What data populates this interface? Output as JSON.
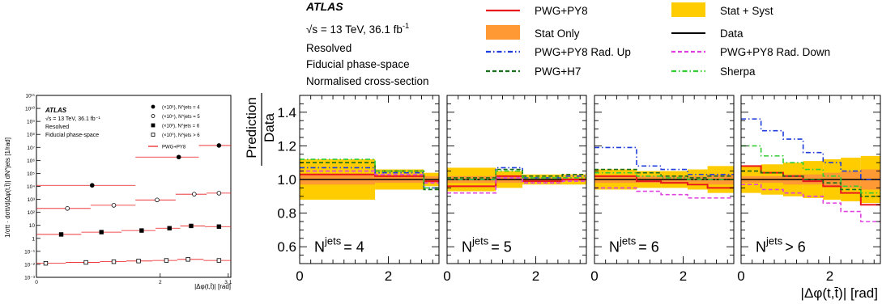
{
  "text": {
    "experiment": "ATLAS",
    "energy": "√s = 13 TeV, 36.1 fb",
    "energy_sup": "-1",
    "selection": "Resolved",
    "phase_space": "Fiducial phase-space",
    "normalisation": "Normalised cross-section"
  },
  "legend": [
    {
      "label": "PWG+PY8",
      "style": "solid",
      "color": "#e8191c"
    },
    {
      "label": "Stat + Syst",
      "style": "box",
      "color": "#ffcc00"
    },
    {
      "label": "Stat Only",
      "style": "box",
      "color": "#ff9933"
    },
    {
      "label": "Data",
      "style": "solid",
      "color": "#000000"
    },
    {
      "label": "PWG+PY8 Rad. Up",
      "style": "dashdot",
      "color": "#1f3ddc"
    },
    {
      "label": "PWG+PY8 Rad. Down",
      "style": "dash",
      "color": "#e040e0"
    },
    {
      "label": "PWG+H7",
      "style": "dash",
      "color": "#1a6e1a"
    },
    {
      "label": "Sherpa",
      "style": "dashdot",
      "color": "#33cc33"
    }
  ],
  "small_plot": {
    "ylabel": "1/σtt · dσtt/d|Δφ(t,t̄)| dN^jets [1/rad]",
    "xlabel": "|Δφ(t,t̄)| [rad]",
    "x_ticks": [
      "0",
      "2",
      "3.1"
    ],
    "y_ticks": [
      "10⁻³",
      "10⁻²",
      "10⁻¹",
      "1",
      "10",
      "10²",
      "10³",
      "10⁴",
      "10⁵",
      "10⁶",
      "10⁷",
      "10⁸",
      "10⁹",
      "10¹⁰",
      "10¹¹"
    ],
    "atlas": "ATLAS",
    "energy": "√s = 13 TeV, 36.1 fb⁻¹",
    "selection": "Resolved",
    "phase_space": "Fiducial phase-space",
    "legend": [
      {
        "label": "(×10⁶), N^jets = 4",
        "marker": "filled-circle"
      },
      {
        "label": "(×10⁴), N^jets = 5",
        "marker": "open-circle"
      },
      {
        "label": "(×10²), N^jets = 6",
        "marker": "filled-square"
      },
      {
        "label": "(×10⁰), N^jets > 6",
        "marker": "open-square"
      },
      {
        "label": "PWG+PY8",
        "marker": "line"
      }
    ]
  },
  "ratio_panels": {
    "ylabel_top": "Prediction",
    "ylabel_bottom": "Data",
    "xlabel": "|Δφ(t,t̄)| [rad]",
    "y_ticks": [
      "0.6",
      "0.8",
      "1.0",
      "1.2",
      "1.4"
    ],
    "x_ticks": [
      "0",
      "2"
    ],
    "panel_labels": [
      {
        "prefix": "N",
        "sup": "jets",
        "rest": "= 4"
      },
      {
        "prefix": "N",
        "sup": "jets",
        "rest": "= 5"
      },
      {
        "prefix": "N",
        "sup": "jets",
        "rest": "= 6"
      },
      {
        "prefix": "N",
        "sup": "jets",
        "rest": "> 6"
      }
    ]
  },
  "chart_data": [
    {
      "type": "line",
      "title": "",
      "xlabel": "|Δφ(t,t̄)| [rad]",
      "ylabel": "1/σtt · dσtt/d|Δφ(t,t̄)| dN^jets [1/rad]",
      "yscale": "log",
      "xlim": [
        0,
        3.1416
      ],
      "ylim": [
        0.001,
        100000000000
      ],
      "series": [
        {
          "name": "(×10⁶), N^jets = 4",
          "x": [
            0.9,
            2.3,
            2.95
          ],
          "y": [
            12000,
            1800000,
            14000000
          ]
        },
        {
          "name": "(×10⁴), N^jets = 5",
          "x": [
            0.5,
            1.25,
            1.95,
            2.55,
            2.95
          ],
          "y": [
            200,
            350,
            900,
            2500,
            3000
          ]
        },
        {
          "name": "(×10²), N^jets = 6",
          "x": [
            0.4,
            1.05,
            1.7,
            2.15,
            2.5,
            2.95
          ],
          "y": [
            2,
            3,
            4,
            6,
            9,
            8
          ]
        },
        {
          "name": "(×10⁰), N^jets > 6",
          "x": [
            0.15,
            0.8,
            1.25,
            1.65,
            2.1,
            2.45,
            2.95
          ],
          "y": [
            0.012,
            0.014,
            0.016,
            0.018,
            0.02,
            0.024,
            0.02
          ]
        }
      ]
    },
    {
      "type": "line",
      "title": "",
      "xlabel": "|Δφ(t,t̄)| [rad]",
      "ylabel": "Prediction / Data",
      "xlim": [
        0,
        3.1416
      ],
      "ylim": [
        0.5,
        1.5
      ],
      "panels": [
        {
          "label": "N^jets = 4",
          "bins": [
            0,
            1.7,
            2.8,
            3.1416
          ],
          "stat_syst": [
            0.12,
            0.06,
            0.04
          ],
          "stat_only": [
            0.03,
            0.02,
            0.02
          ],
          "series": [
            {
              "name": "PWG+PY8",
              "values": [
                1.03,
                1.02,
                0.99
              ]
            },
            {
              "name": "PWG+PY8 Rad. Up",
              "values": [
                1.07,
                1.04,
                0.95
              ]
            },
            {
              "name": "PWG+PY8 Rad. Down",
              "values": [
                1.05,
                1.03,
                0.98
              ]
            },
            {
              "name": "PWG+H7",
              "values": [
                1.1,
                1.05,
                0.94
              ]
            },
            {
              "name": "Sherpa",
              "values": [
                1.12,
                1.05,
                0.95
              ]
            }
          ]
        },
        {
          "label": "N^jets = 5",
          "bins": [
            0,
            1.1,
            1.7,
            2.6,
            3.1416
          ],
          "stat_syst": [
            0.07,
            0.05,
            0.03,
            0.03
          ],
          "stat_only": [
            0.02,
            0.02,
            0.01,
            0.01
          ],
          "series": [
            {
              "name": "PWG+PY8",
              "values": [
                0.96,
                1.02,
                0.99,
                1.0
              ]
            },
            {
              "name": "PWG+PY8 Rad. Up",
              "values": [
                1.0,
                1.07,
                1.01,
                1.02
              ]
            },
            {
              "name": "PWG+PY8 Rad. Down",
              "values": [
                0.92,
                1.01,
                0.98,
                0.99
              ]
            },
            {
              "name": "PWG+H7",
              "values": [
                1.01,
                1.06,
                1.02,
                1.03
              ]
            },
            {
              "name": "Sherpa",
              "values": [
                1.0,
                1.05,
                1.01,
                1.01
              ]
            }
          ]
        },
        {
          "label": "N^jets = 6",
          "bins": [
            0,
            0.95,
            1.5,
            2.1,
            2.55,
            3.1416
          ],
          "stat_syst": [
            0.06,
            0.05,
            0.05,
            0.06,
            0.08
          ],
          "stat_only": [
            0.02,
            0.02,
            0.02,
            0.02,
            0.03
          ],
          "series": [
            {
              "name": "PWG+PY8",
              "values": [
                1.02,
                0.99,
                0.98,
                0.97,
                0.95
              ]
            },
            {
              "name": "PWG+PY8 Rad. Up",
              "values": [
                1.19,
                1.08,
                1.06,
                1.03,
                1.03
              ]
            },
            {
              "name": "PWG+PY8 Rad. Down",
              "values": [
                0.95,
                0.93,
                0.91,
                0.89,
                0.89
              ]
            },
            {
              "name": "PWG+H7",
              "values": [
                1.06,
                1.04,
                1.02,
                1.01,
                1.02
              ]
            },
            {
              "name": "Sherpa",
              "values": [
                1.04,
                1.02,
                1.01,
                1.0,
                1.0
              ]
            }
          ]
        },
        {
          "label": "N^jets > 6",
          "bins": [
            0,
            0.45,
            0.95,
            1.4,
            1.85,
            2.25,
            2.7,
            3.1416
          ],
          "stat_syst": [
            0.08,
            0.09,
            0.1,
            0.11,
            0.12,
            0.13,
            0.14
          ],
          "stat_only": [
            0.02,
            0.02,
            0.03,
            0.03,
            0.04,
            0.05,
            0.06
          ],
          "series": [
            {
              "name": "PWG+PY8",
              "values": [
                1.08,
                1.04,
                1.02,
                0.99,
                0.96,
                0.92,
                0.85
              ]
            },
            {
              "name": "PWG+PY8 Rad. Up",
              "values": [
                1.36,
                1.29,
                1.24,
                1.16,
                1.1,
                1.05,
                1.0
              ]
            },
            {
              "name": "PWG+PY8 Rad. Down",
              "values": [
                0.97,
                0.94,
                0.92,
                0.9,
                0.86,
                0.81,
                0.75
              ]
            },
            {
              "name": "PWG+H7",
              "values": [
                1.05,
                1.04,
                1.02,
                1.0,
                0.98,
                0.94,
                0.9
              ]
            },
            {
              "name": "Sherpa",
              "values": [
                1.2,
                1.14,
                1.1,
                1.06,
                1.02,
                0.96,
                0.92
              ]
            }
          ]
        }
      ]
    }
  ]
}
